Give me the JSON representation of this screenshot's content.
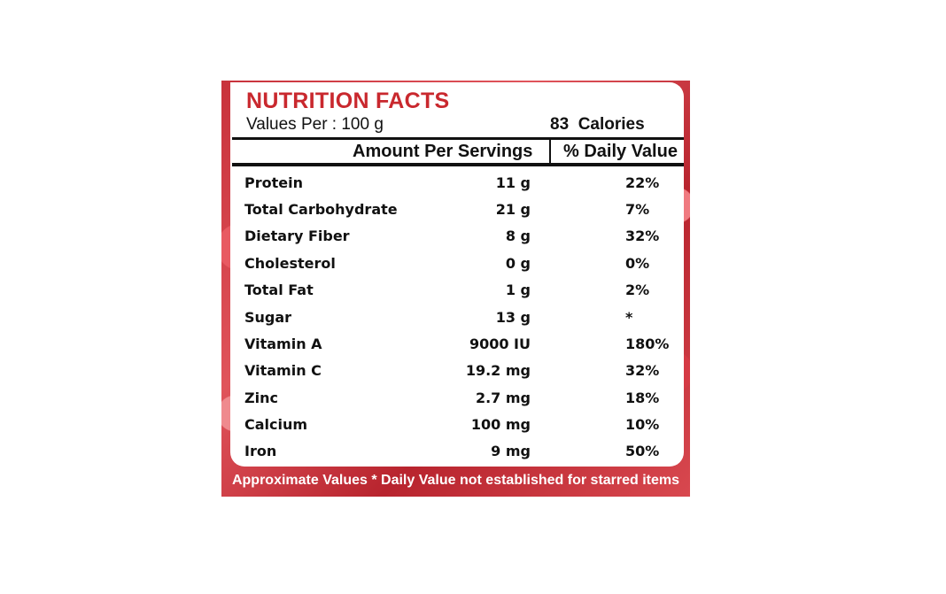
{
  "label": {
    "title": "NUTRITION FACTS",
    "values_per": "Values Per : 100 g",
    "calories": "83  Calories",
    "column_amount": "Amount Per Servings",
    "column_daily_value": "% Daily Value",
    "nutrients": [
      {
        "name": "Protein",
        "amount": "11 g",
        "daily_value": "22%"
      },
      {
        "name": "Total Carbohydrate",
        "amount": "21 g",
        "daily_value": "7%"
      },
      {
        "name": "Dietary Fiber",
        "amount": "8 g",
        "daily_value": "32%"
      },
      {
        "name": "Cholesterol",
        "amount": "0 g",
        "daily_value": "0%"
      },
      {
        "name": "Total Fat",
        "amount": "1 g",
        "daily_value": "2%"
      },
      {
        "name": "Sugar",
        "amount": "13 g",
        "daily_value": "*"
      },
      {
        "name": "Vitamin A",
        "amount": "9000 IU",
        "daily_value": "180%"
      },
      {
        "name": "Vitamin C",
        "amount": "19.2 mg",
        "daily_value": "32%"
      },
      {
        "name": "Zinc",
        "amount": "2.7 mg",
        "daily_value": "18%"
      },
      {
        "name": "Calcium",
        "amount": "100 mg",
        "daily_value": "10%"
      },
      {
        "name": "Iron",
        "amount": "9 mg",
        "daily_value": "50%"
      }
    ],
    "footer": "Approximate Values * Daily Value not established for starred items"
  },
  "colors": {
    "title": "#c9282e",
    "background_red": "#c8323b"
  }
}
